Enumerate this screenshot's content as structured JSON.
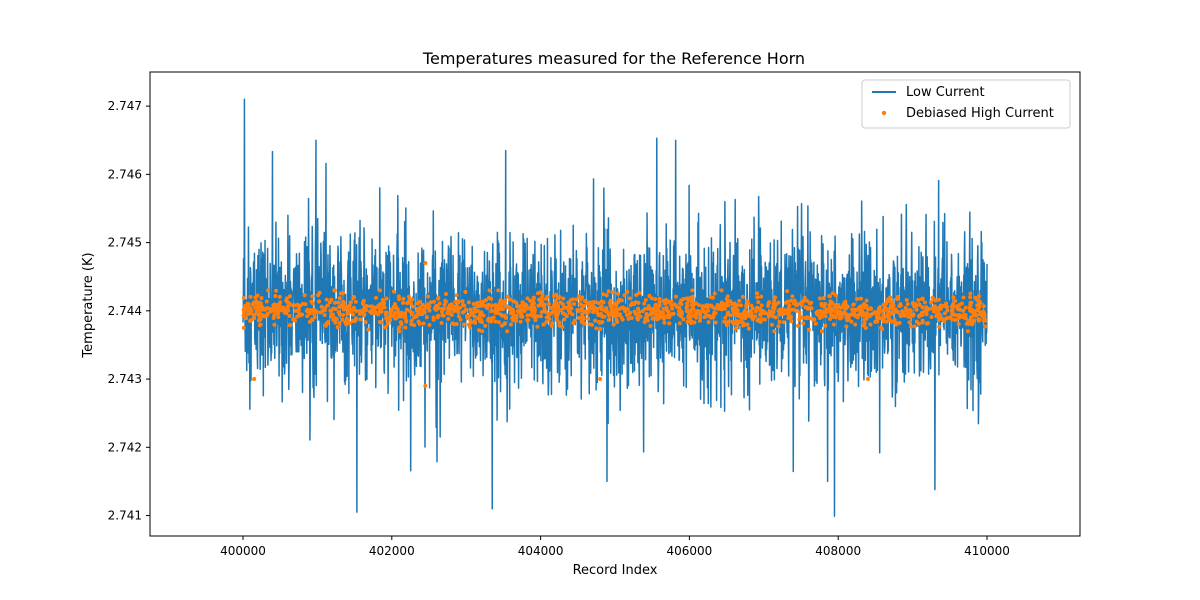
{
  "chart_data": {
    "type": "line",
    "title": "Temperatures measured for the Reference Horn",
    "xlabel": "Record Index",
    "ylabel": "Temperature (K)",
    "xlim": [
      398750,
      411250
    ],
    "ylim": [
      2.7407,
      2.7475
    ],
    "xticks": [
      {
        "value": 400000,
        "label": "400000"
      },
      {
        "value": 402000,
        "label": "402000"
      },
      {
        "value": 404000,
        "label": "404000"
      },
      {
        "value": 406000,
        "label": "406000"
      },
      {
        "value": 408000,
        "label": "408000"
      },
      {
        "value": 410000,
        "label": "410000"
      }
    ],
    "yticks": [
      {
        "value": 2.741,
        "label": "2.741"
      },
      {
        "value": 2.742,
        "label": "2.742"
      },
      {
        "value": 2.743,
        "label": "2.743"
      },
      {
        "value": 2.744,
        "label": "2.744"
      },
      {
        "value": 2.745,
        "label": "2.745"
      },
      {
        "value": 2.746,
        "label": "2.746"
      },
      {
        "value": 2.747,
        "label": "2.747"
      }
    ],
    "grid": false,
    "legend_position": "top-right",
    "series": [
      {
        "name": "Low Current",
        "style": "line",
        "color": "#1f77b4",
        "x_range": [
          400000,
          410000
        ],
        "approx_center": 2.744,
        "approx_envelope": [
          2.7415,
          2.7465
        ],
        "notable_points": [
          {
            "x": 400020,
            "y": 2.7471
          },
          {
            "x": 401530,
            "y": 2.74105
          },
          {
            "x": 403350,
            "y": 2.7411
          },
          {
            "x": 405560,
            "y": 2.74653
          },
          {
            "x": 407950,
            "y": 2.74099
          },
          {
            "x": 409300,
            "y": 2.74138
          }
        ]
      },
      {
        "name": "Debiased High Current",
        "style": "scatter",
        "color": "#ff7f0e",
        "x_range": [
          400000,
          410000
        ],
        "approx_center": 2.744,
        "approx_envelope": [
          2.7437,
          2.7443
        ],
        "notable_points": [
          {
            "x": 402450,
            "y": 2.7447
          },
          {
            "x": 400150,
            "y": 2.743
          },
          {
            "x": 402450,
            "y": 2.7429
          },
          {
            "x": 404800,
            "y": 2.743
          },
          {
            "x": 408400,
            "y": 2.743
          }
        ]
      }
    ]
  }
}
